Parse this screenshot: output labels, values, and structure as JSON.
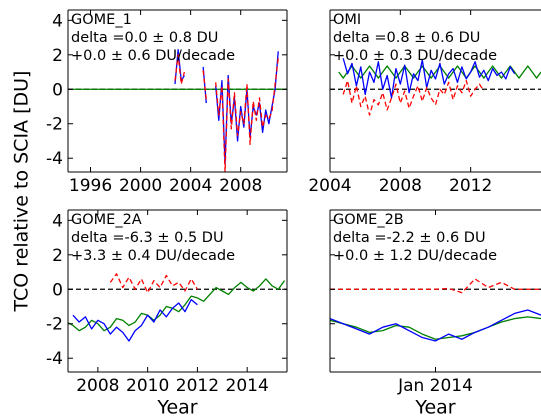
{
  "chart_data": [
    {
      "type": "line",
      "ylabel": "TCO relative to SCIA [DU]",
      "annotations": [
        "GOME_1",
        "delta =0.0 ± 0.8 DU",
        "+0.0 ± 0.6 DU/decade"
      ],
      "x": [
        1994.5,
        2002.75,
        2003.0,
        2003.25,
        2003.5,
        2003.75,
        2004.0,
        2004.5,
        2005.0,
        2005.25,
        2005.5,
        2006.0,
        2006.25,
        2006.5,
        2006.75,
        2007.0,
        2007.25,
        2007.5,
        2007.75,
        2008.0,
        2008.25,
        2008.5,
        2008.75,
        2009.0,
        2009.25,
        2009.5,
        2009.75,
        2010.0,
        2010.25,
        2010.5,
        2010.75,
        2011.0,
        2011.75
      ],
      "series": [
        {
          "color": "#008000",
          "linestyle": "solid",
          "values": [
            0,
            0,
            0,
            0,
            0,
            0,
            0,
            0,
            0,
            0,
            0,
            0,
            0,
            0,
            0,
            0,
            0,
            0,
            0,
            0,
            0,
            0,
            0,
            0,
            0,
            0,
            0,
            0,
            0,
            0,
            0,
            0,
            0
          ]
        },
        {
          "color": "#0000ff",
          "linestyle": "solid",
          "values": [
            null,
            0.3,
            2.3,
            0.5,
            0.8,
            null,
            null,
            null,
            1.3,
            -0.8,
            null,
            0.2,
            -1.8,
            0.5,
            -4.3,
            0.8,
            -2.0,
            -0.5,
            -3.0,
            -1.0,
            -2.2,
            0.0,
            -2.8,
            -1.0,
            -1.5,
            -0.8,
            -2.5,
            -1.2,
            -2.0,
            -1.0,
            0.0,
            2.2,
            null
          ]
        },
        {
          "color": "#ff0000",
          "linestyle": "dashed",
          "values": [
            null,
            0.5,
            2.0,
            0.3,
            1.0,
            null,
            null,
            null,
            1.1,
            -0.6,
            null,
            0.4,
            -1.5,
            0.2,
            -4.8,
            0.6,
            -2.3,
            -0.2,
            -2.7,
            -1.3,
            -2.0,
            0.3,
            -3.2,
            -0.7,
            -1.8,
            -0.5,
            -2.2,
            -1.5,
            -1.7,
            -1.3,
            0.3,
            1.8,
            null
          ]
        }
      ],
      "hline": 0,
      "xlim": [
        1994.2,
        2011.7
      ],
      "xticks": [
        1996,
        2000,
        2004,
        2008
      ],
      "ylim": [
        -4.8,
        4.6
      ],
      "yticks": [
        -4,
        -2,
        0,
        2,
        4
      ],
      "show_yticklabels": true
    },
    {
      "type": "line",
      "annotations": [
        "OMI",
        "delta =0.8 ± 0.6 DU",
        "+0.0 ± 0.3 DU/decade"
      ],
      "x": [
        2004.5,
        2004.75,
        2005.0,
        2005.25,
        2005.5,
        2005.75,
        2006.0,
        2006.25,
        2006.5,
        2006.75,
        2007.0,
        2007.25,
        2007.5,
        2007.75,
        2008.0,
        2008.25,
        2008.5,
        2008.75,
        2009.0,
        2009.25,
        2009.5,
        2009.75,
        2010.0,
        2010.25,
        2010.5,
        2010.75,
        2011.0,
        2011.25,
        2011.5,
        2011.75,
        2012.0,
        2012.25,
        2012.5,
        2012.75,
        2013.0,
        2013.25,
        2013.5,
        2013.75,
        2014.0,
        2014.25,
        2014.5,
        2014.75,
        2015.0,
        2015.25,
        2015.5,
        2015.75,
        2016.0
      ],
      "series": [
        {
          "color": "#008000",
          "linestyle": "solid",
          "values": [
            1.0,
            0.65,
            1.0,
            1.35,
            1.0,
            0.65,
            1.0,
            1.35,
            1.0,
            0.65,
            1.0,
            1.35,
            1.0,
            0.65,
            1.0,
            1.35,
            1.0,
            0.65,
            1.0,
            1.35,
            1.0,
            0.65,
            1.0,
            1.35,
            1.0,
            0.65,
            1.0,
            1.35,
            1.0,
            0.65,
            1.0,
            1.35,
            1.0,
            0.65,
            1.0,
            1.35,
            1.0,
            0.65,
            1.0,
            1.35,
            1.0,
            0.65,
            1.0,
            1.35,
            1.0,
            0.65,
            1.0
          ]
        },
        {
          "color": "#0000ff",
          "linestyle": "solid",
          "values": [
            null,
            1.8,
            0.9,
            1.5,
            0.2,
            1.3,
            -0.3,
            1.0,
            0.4,
            1.6,
            0.0,
            0.8,
            -0.5,
            1.2,
            0.3,
            1.4,
            -0.2,
            0.9,
            0.5,
            1.7,
            0.1,
            1.1,
            0.6,
            1.5,
            0.3,
            0.9,
            1.2,
            0.4,
            1.3,
            0.6,
            1.0,
            1.6,
            0.7,
            1.1,
            0.5,
            1.2,
            0.8,
            1.0,
            0.6,
            1.3,
            0.9,
            null,
            null,
            null,
            null,
            null,
            null
          ]
        },
        {
          "color": "#ff0000",
          "linestyle": "dashed",
          "values": [
            null,
            -0.3,
            0.5,
            -0.8,
            0.2,
            -1.0,
            -0.4,
            -1.5,
            -0.6,
            -0.9,
            -0.2,
            -1.2,
            -0.5,
            0.3,
            -0.8,
            -0.1,
            -1.1,
            -0.4,
            0.2,
            -0.7,
            0.1,
            -0.5,
            -0.9,
            0.0,
            -0.3,
            0.4,
            -0.6,
            0.2,
            -0.2,
            0.5,
            -0.4,
            0.0,
            0.3,
            -0.1,
            null,
            null,
            null,
            null,
            null,
            null,
            null,
            null,
            null,
            null,
            null,
            null,
            null
          ]
        }
      ],
      "hline": 0,
      "xlim": [
        2004,
        2016
      ],
      "xticks": [
        2004,
        2008,
        2012
      ],
      "ylim": [
        -4.8,
        4.6
      ],
      "yticks": [
        -4,
        -2,
        0,
        2,
        4
      ],
      "show_yticklabels": false
    },
    {
      "type": "line",
      "xlabel": "Year",
      "annotations": [
        "GOME_2A",
        "delta =-6.3 ± 0.5 DU",
        "+3.3 ± 0.4 DU/decade"
      ],
      "x": [
        2006.75,
        2007.0,
        2007.25,
        2007.5,
        2007.75,
        2008.0,
        2008.25,
        2008.5,
        2008.75,
        2009.0,
        2009.25,
        2009.5,
        2009.75,
        2010.0,
        2010.25,
        2010.5,
        2010.75,
        2011.0,
        2011.25,
        2011.5,
        2011.75,
        2012.0,
        2012.25,
        2012.5,
        2012.75,
        2013.0,
        2013.25,
        2013.5,
        2013.75,
        2014.0,
        2014.25,
        2014.5,
        2014.75,
        2015.0,
        2015.25,
        2015.5
      ],
      "series": [
        {
          "color": "#008000",
          "linestyle": "solid",
          "values": [
            -1.9,
            -2.1,
            -2.4,
            -2.2,
            -1.8,
            -2.0,
            -2.4,
            -2.2,
            -1.7,
            -1.8,
            -2.1,
            -1.9,
            -1.4,
            -1.5,
            -1.8,
            -1.5,
            -1.0,
            -1.1,
            -1.3,
            -0.9,
            -0.4,
            -0.5,
            -0.7,
            -0.3,
            0.1,
            -0.1,
            -0.3,
            0.1,
            0.4,
            0.1,
            -0.1,
            0.2,
            0.6,
            0.2,
            0.0,
            0.5
          ]
        },
        {
          "color": "#0000ff",
          "linestyle": "solid",
          "values": [
            null,
            -1.5,
            -1.9,
            -1.6,
            -2.3,
            -1.8,
            -2.0,
            -2.6,
            -2.2,
            -2.5,
            -3.0,
            -2.4,
            -2.1,
            -1.5,
            -1.9,
            -1.2,
            -1.6,
            -1.1,
            -0.8,
            -1.3,
            -0.6,
            -0.9,
            null,
            null,
            null,
            null,
            null,
            null,
            null,
            null,
            null,
            null,
            null,
            null,
            null,
            null
          ]
        },
        {
          "color": "#ff0000",
          "linestyle": "dashed",
          "values": [
            null,
            null,
            null,
            null,
            null,
            null,
            null,
            0.4,
            0.9,
            0.1,
            0.7,
            0.0,
            0.6,
            -0.2,
            0.5,
            0.1,
            0.8,
            0.2,
            0.4,
            -0.1,
            0.6,
            0.0,
            null,
            null,
            null,
            null,
            null,
            null,
            null,
            null,
            null,
            null,
            null,
            null,
            null,
            null
          ]
        }
      ],
      "hline": 0,
      "xlim": [
        2006.8,
        2015.6
      ],
      "xticks": [
        2008,
        2010,
        2012,
        2014
      ],
      "ylim": [
        -4.8,
        4.6
      ],
      "yticks": [
        -4,
        -2,
        0,
        2,
        4
      ],
      "show_yticklabels": true
    },
    {
      "type": "line",
      "xlabel": "Year",
      "annotations": [
        "GOME_2B",
        "delta =-2.2 ± 0.6 DU",
        "+0.0 ± 1.2 DU/decade"
      ],
      "x": [
        2013.0,
        2013.125,
        2013.25,
        2013.375,
        2013.5,
        2013.625,
        2013.75,
        2013.875,
        2014.0,
        2014.125,
        2014.25,
        2014.375,
        2014.5,
        2014.625,
        2014.75,
        2014.875,
        2015.0
      ],
      "series": [
        {
          "color": "#008000",
          "linestyle": "solid",
          "values": [
            -1.8,
            -2.0,
            -2.2,
            -2.5,
            -2.4,
            -2.1,
            -2.2,
            -2.6,
            -2.9,
            -2.8,
            -2.7,
            -2.5,
            -2.2,
            -1.9,
            -1.7,
            -1.6,
            -1.7
          ]
        },
        {
          "color": "#0000ff",
          "linestyle": "solid",
          "values": [
            -1.7,
            -2.0,
            -2.3,
            -2.6,
            -2.2,
            -2.0,
            -2.4,
            -2.8,
            -3.0,
            -2.6,
            -2.9,
            -2.5,
            -2.2,
            -1.8,
            -1.4,
            -1.2,
            -1.5
          ]
        },
        {
          "color": "#ff0000",
          "linestyle": "dashed",
          "values": [
            0.0,
            0.0,
            0.0,
            0.0,
            0.0,
            0.0,
            0.0,
            0.0,
            0.0,
            0.05,
            -0.2,
            0.6,
            0.1,
            0.4,
            0.0,
            0.0,
            0.0
          ]
        }
      ],
      "hline": 0,
      "xlim": [
        2013.0,
        2015.0
      ],
      "xticks": [
        {
          "value": 2014.0,
          "label": "Jan 2014"
        }
      ],
      "ylim": [
        -4.8,
        4.6
      ],
      "yticks": [
        -4,
        -2,
        0,
        2,
        4
      ],
      "show_yticklabels": false
    }
  ]
}
